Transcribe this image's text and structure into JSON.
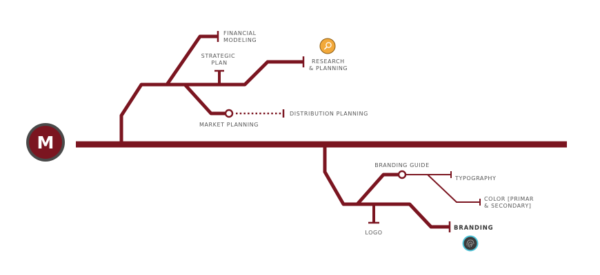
{
  "colors": {
    "line": "#7b1520",
    "logo_ring": "#4a4a4a",
    "research_icon": "#f2a93b",
    "branding_icon": "#3a3a3a",
    "branding_icon_ring": "#4ec3d8"
  },
  "logo": {
    "letter": "M",
    "icon": "m-monogram-logo"
  },
  "icons": {
    "research": "magnifier-icon",
    "branding": "fingerprint-icon"
  },
  "labels": {
    "financial_modeling": [
      "FINANCIAL",
      "MODELING"
    ],
    "strategic_plan": [
      "STRATEGIC",
      "PLAN"
    ],
    "research_planning": [
      "RESEARCH",
      "& PLANNING"
    ],
    "market_planning": "MARKET PLANNING",
    "distribution_planning": "DISTRIBUTION PLANNING",
    "branding_guide": "BRANDING GUIDE",
    "typography": "TYPOGRAPHY",
    "color": [
      "COLOR [PRIMAR",
      "& SECONDARY]"
    ],
    "branding": "BRANDING",
    "logo": "LOGO"
  }
}
